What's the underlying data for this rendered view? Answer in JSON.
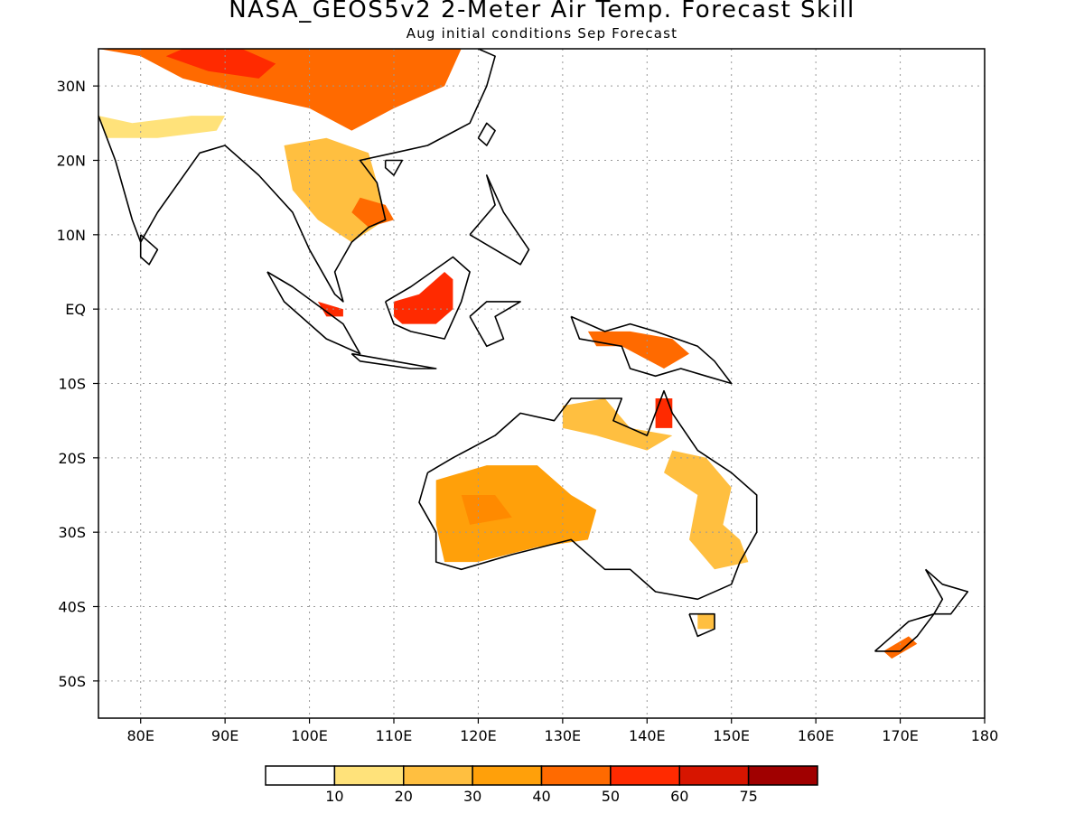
{
  "title": "NASA_GEOS5v2 2-Meter Air Temp. Forecast Skill",
  "subtitle": "Aug initial conditions  Sep Forecast",
  "map": {
    "lon_range": [
      75,
      180
    ],
    "lat_range": [
      -55,
      35
    ],
    "lon_ticks": [
      {
        "value": 80,
        "label": "80E"
      },
      {
        "value": 90,
        "label": "90E"
      },
      {
        "value": 100,
        "label": "100E"
      },
      {
        "value": 110,
        "label": "110E"
      },
      {
        "value": 120,
        "label": "120E"
      },
      {
        "value": 130,
        "label": "130E"
      },
      {
        "value": 140,
        "label": "140E"
      },
      {
        "value": 150,
        "label": "150E"
      },
      {
        "value": 160,
        "label": "160E"
      },
      {
        "value": 170,
        "label": "170E"
      },
      {
        "value": 180,
        "label": "180"
      }
    ],
    "lat_ticks": [
      {
        "value": 30,
        "label": "30N"
      },
      {
        "value": 20,
        "label": "20N"
      },
      {
        "value": 10,
        "label": "10N"
      },
      {
        "value": 0,
        "label": "EQ"
      },
      {
        "value": -10,
        "label": "10S"
      },
      {
        "value": -20,
        "label": "20S"
      },
      {
        "value": -30,
        "label": "30S"
      },
      {
        "value": -40,
        "label": "40S"
      },
      {
        "value": -50,
        "label": "50S"
      }
    ],
    "gridlines": "dotted"
  },
  "colorbar": {
    "bins": [
      {
        "color": "#ffffff"
      },
      {
        "color": "#ffe27a"
      },
      {
        "color": "#ffbf40"
      },
      {
        "color": "#ffa00a"
      },
      {
        "color": "#ff6a00"
      },
      {
        "color": "#ff2a00"
      },
      {
        "color": "#d71500"
      },
      {
        "color": "#a00000"
      }
    ],
    "labels": [
      "10",
      "20",
      "30",
      "40",
      "50",
      "60",
      "75"
    ]
  },
  "skill_regions": [
    {
      "region": "central-asia",
      "level": "high",
      "color": "#ff6a00",
      "points": [
        [
          75,
          35
        ],
        [
          80,
          34
        ],
        [
          85,
          31
        ],
        [
          92,
          29
        ],
        [
          100,
          27
        ],
        [
          105,
          24
        ],
        [
          110,
          27
        ],
        [
          116,
          30
        ],
        [
          118,
          35
        ]
      ]
    },
    {
      "region": "tibet-core",
      "level": "very-high",
      "color": "#ff2a00",
      "points": [
        [
          83,
          34
        ],
        [
          88,
          32
        ],
        [
          94,
          31
        ],
        [
          96,
          33
        ],
        [
          92,
          35
        ],
        [
          85,
          35
        ]
      ]
    },
    {
      "region": "north-india",
      "level": "low",
      "color": "#ffe27a",
      "points": [
        [
          75,
          26
        ],
        [
          79,
          25
        ],
        [
          86,
          26
        ],
        [
          90,
          26
        ],
        [
          89,
          24
        ],
        [
          82,
          23
        ],
        [
          76,
          23
        ]
      ]
    },
    {
      "region": "indochina",
      "level": "medium",
      "color": "#ffbf40",
      "points": [
        [
          97,
          22
        ],
        [
          102,
          23
        ],
        [
          107,
          21
        ],
        [
          108,
          17
        ],
        [
          109,
          12
        ],
        [
          105,
          9
        ],
        [
          101,
          12
        ],
        [
          98,
          16
        ]
      ]
    },
    {
      "region": "vietnam-coast",
      "level": "high",
      "color": "#ff6a00",
      "points": [
        [
          106,
          15
        ],
        [
          109,
          14
        ],
        [
          110,
          12
        ],
        [
          107,
          11
        ],
        [
          105,
          13
        ]
      ]
    },
    {
      "region": "borneo",
      "level": "very-high",
      "color": "#ff2a00",
      "points": [
        [
          110,
          1
        ],
        [
          113,
          2
        ],
        [
          116,
          5
        ],
        [
          117,
          4
        ],
        [
          117,
          0
        ],
        [
          115,
          -2
        ],
        [
          111,
          -2
        ],
        [
          110,
          -1
        ]
      ]
    },
    {
      "region": "sumatra-east",
      "level": "very-high",
      "color": "#ff2a00",
      "points": [
        [
          101,
          1
        ],
        [
          104,
          0
        ],
        [
          104,
          -1
        ],
        [
          102,
          -1
        ]
      ]
    },
    {
      "region": "new-guinea",
      "level": "high",
      "color": "#ff6a00",
      "points": [
        [
          133,
          -3
        ],
        [
          138,
          -3
        ],
        [
          143,
          -4
        ],
        [
          145,
          -6
        ],
        [
          142,
          -8
        ],
        [
          137,
          -5
        ],
        [
          134,
          -5
        ]
      ]
    },
    {
      "region": "cape-york",
      "level": "very-high",
      "color": "#ff2a00",
      "points": [
        [
          141,
          -12
        ],
        [
          143,
          -12
        ],
        [
          143,
          -16
        ],
        [
          141,
          -16
        ]
      ]
    },
    {
      "region": "west-australia",
      "level": "high",
      "color": "#ffa00a",
      "points": [
        [
          115,
          -23
        ],
        [
          121,
          -21
        ],
        [
          127,
          -21
        ],
        [
          131,
          -25
        ],
        [
          134,
          -27
        ],
        [
          133,
          -31
        ],
        [
          127,
          -32
        ],
        [
          120,
          -34
        ],
        [
          116,
          -34
        ],
        [
          115,
          -29
        ]
      ]
    },
    {
      "region": "west-australia-core",
      "level": "high",
      "color": "#ff8a00",
      "points": [
        [
          118,
          -25
        ],
        [
          122,
          -25
        ],
        [
          124,
          -28
        ],
        [
          119,
          -29
        ]
      ]
    },
    {
      "region": "north-australia",
      "level": "medium",
      "color": "#ffbf40",
      "points": [
        [
          130,
          -13
        ],
        [
          135,
          -12
        ],
        [
          138,
          -16
        ],
        [
          143,
          -17
        ],
        [
          140,
          -19
        ],
        [
          134,
          -17
        ],
        [
          130,
          -16
        ]
      ]
    },
    {
      "region": "east-australia",
      "level": "medium",
      "color": "#ffbf40",
      "points": [
        [
          143,
          -19
        ],
        [
          147,
          -20
        ],
        [
          150,
          -24
        ],
        [
          149,
          -29
        ],
        [
          151,
          -31
        ],
        [
          152,
          -34
        ],
        [
          148,
          -35
        ],
        [
          145,
          -31
        ],
        [
          146,
          -25
        ],
        [
          142,
          -22
        ]
      ]
    },
    {
      "region": "new-zealand-south",
      "level": "high",
      "color": "#ff6a00",
      "points": [
        [
          168,
          -46
        ],
        [
          171,
          -44
        ],
        [
          172,
          -45
        ],
        [
          169,
          -47
        ]
      ]
    },
    {
      "region": "tasmania",
      "level": "medium",
      "color": "#ffbf40",
      "points": [
        [
          146,
          -41
        ],
        [
          148,
          -41
        ],
        [
          148,
          -43
        ],
        [
          146,
          -43
        ]
      ]
    }
  ],
  "coastlines": [
    {
      "name": "asia-mainland",
      "points": [
        [
          75,
          26
        ],
        [
          77,
          20
        ],
        [
          79,
          12
        ],
        [
          80,
          9
        ],
        [
          82,
          13
        ],
        [
          87,
          21
        ],
        [
          90,
          22
        ],
        [
          94,
          18
        ],
        [
          98,
          13
        ],
        [
          100,
          8
        ],
        [
          103,
          2
        ],
        [
          104,
          1
        ],
        [
          103,
          5
        ],
        [
          105,
          9
        ],
        [
          107,
          11
        ],
        [
          109,
          12
        ],
        [
          108,
          17
        ],
        [
          106,
          20
        ],
        [
          110,
          21
        ],
        [
          114,
          22
        ],
        [
          119,
          25
        ],
        [
          121,
          30
        ],
        [
          122,
          34
        ],
        [
          120,
          35
        ]
      ]
    },
    {
      "name": "sumatra",
      "points": [
        [
          95,
          5
        ],
        [
          98,
          3
        ],
        [
          104,
          -2
        ],
        [
          106,
          -6
        ],
        [
          102,
          -4
        ],
        [
          97,
          1
        ],
        [
          95,
          5
        ]
      ]
    },
    {
      "name": "java",
      "points": [
        [
          105,
          -6
        ],
        [
          110,
          -7
        ],
        [
          115,
          -8
        ],
        [
          112,
          -8
        ],
        [
          106,
          -7
        ],
        [
          105,
          -6
        ]
      ]
    },
    {
      "name": "borneo",
      "points": [
        [
          109,
          1
        ],
        [
          112,
          3
        ],
        [
          117,
          7
        ],
        [
          119,
          5
        ],
        [
          118,
          1
        ],
        [
          116,
          -4
        ],
        [
          112,
          -3
        ],
        [
          110,
          -2
        ],
        [
          109,
          1
        ]
      ]
    },
    {
      "name": "sulawesi",
      "points": [
        [
          119,
          -1
        ],
        [
          121,
          1
        ],
        [
          125,
          1
        ],
        [
          122,
          -1
        ],
        [
          123,
          -4
        ],
        [
          121,
          -5
        ],
        [
          120,
          -3
        ],
        [
          119,
          -1
        ]
      ]
    },
    {
      "name": "philippines",
      "points": [
        [
          119,
          10
        ],
        [
          122,
          14
        ],
        [
          121,
          18
        ],
        [
          123,
          13
        ],
        [
          126,
          8
        ],
        [
          125,
          6
        ],
        [
          122,
          8
        ],
        [
          119,
          10
        ]
      ]
    },
    {
      "name": "taiwan",
      "points": [
        [
          120,
          23
        ],
        [
          121,
          25
        ],
        [
          122,
          24
        ],
        [
          121,
          22
        ],
        [
          120,
          23
        ]
      ]
    },
    {
      "name": "new-guinea",
      "points": [
        [
          131,
          -1
        ],
        [
          135,
          -3
        ],
        [
          138,
          -2
        ],
        [
          141,
          -3
        ],
        [
          146,
          -5
        ],
        [
          148,
          -7
        ],
        [
          150,
          -10
        ],
        [
          147,
          -9
        ],
        [
          144,
          -8
        ],
        [
          141,
          -9
        ],
        [
          138,
          -8
        ],
        [
          137,
          -5
        ],
        [
          132,
          -4
        ],
        [
          131,
          -1
        ]
      ]
    },
    {
      "name": "australia",
      "points": [
        [
          114,
          -22
        ],
        [
          117,
          -20
        ],
        [
          122,
          -17
        ],
        [
          125,
          -14
        ],
        [
          129,
          -15
        ],
        [
          131,
          -12
        ],
        [
          137,
          -12
        ],
        [
          136,
          -15
        ],
        [
          140,
          -17
        ],
        [
          142,
          -11
        ],
        [
          143,
          -14
        ],
        [
          146,
          -19
        ],
        [
          150,
          -22
        ],
        [
          153,
          -25
        ],
        [
          153,
          -30
        ],
        [
          151,
          -34
        ],
        [
          150,
          -37
        ],
        [
          146,
          -39
        ],
        [
          141,
          -38
        ],
        [
          138,
          -35
        ],
        [
          135,
          -35
        ],
        [
          131,
          -31
        ],
        [
          124,
          -33
        ],
        [
          118,
          -35
        ],
        [
          115,
          -34
        ],
        [
          115,
          -30
        ],
        [
          113,
          -26
        ],
        [
          114,
          -22
        ]
      ]
    },
    {
      "name": "tasmania",
      "points": [
        [
          145,
          -41
        ],
        [
          148,
          -41
        ],
        [
          148,
          -43
        ],
        [
          146,
          -44
        ],
        [
          145,
          -41
        ]
      ]
    },
    {
      "name": "nz-north",
      "points": [
        [
          173,
          -35
        ],
        [
          175,
          -37
        ],
        [
          178,
          -38
        ],
        [
          176,
          -41
        ],
        [
          174,
          -41
        ],
        [
          175,
          -39
        ],
        [
          173,
          -35
        ]
      ]
    },
    {
      "name": "nz-south",
      "points": [
        [
          167,
          -46
        ],
        [
          170,
          -46
        ],
        [
          172,
          -44
        ],
        [
          174,
          -41
        ],
        [
          171,
          -42
        ],
        [
          168,
          -45
        ],
        [
          167,
          -46
        ]
      ]
    },
    {
      "name": "sri-lanka",
      "points": [
        [
          80,
          10
        ],
        [
          82,
          8
        ],
        [
          81,
          6
        ],
        [
          80,
          7
        ],
        [
          80,
          10
        ]
      ]
    },
    {
      "name": "hainan",
      "points": [
        [
          109,
          20
        ],
        [
          111,
          20
        ],
        [
          110,
          18
        ],
        [
          109,
          19
        ],
        [
          109,
          20
        ]
      ]
    }
  ]
}
